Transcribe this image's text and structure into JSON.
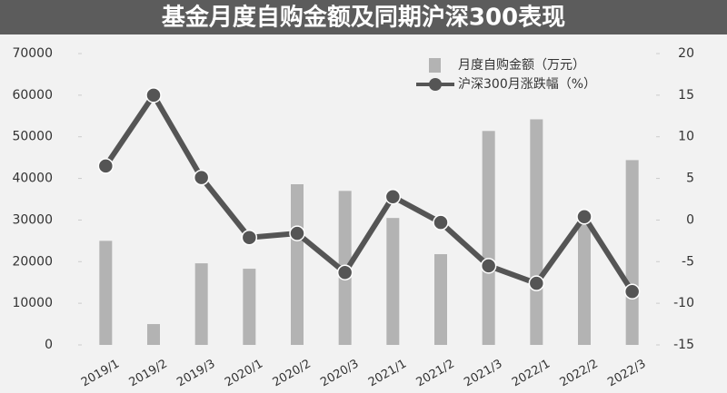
{
  "chart_data": {
    "type": "combo",
    "title": "基金月度自购金额及同期沪深300表现",
    "categories": [
      "2019/1",
      "2019/2",
      "2019/3",
      "2020/1",
      "2020/2",
      "2020/3",
      "2021/1",
      "2021/2",
      "2021/3",
      "2022/1",
      "2022/2",
      "2022/3"
    ],
    "series": [
      {
        "name": "月度自购金额（万元）",
        "type": "bar",
        "color": "#b3b3b3",
        "axis": "y",
        "values": [
          25000,
          5000,
          19600,
          18300,
          38600,
          37000,
          30500,
          21800,
          51400,
          54200,
          29000,
          44400
        ]
      },
      {
        "name": "沪深300月涨跌幅（%）",
        "type": "line",
        "color": "#555555",
        "axis": "y2",
        "values": [
          6.5,
          15,
          5.1,
          -2.1,
          -1.6,
          -6.3,
          2.8,
          -0.3,
          -5.5,
          -7.6,
          0.4,
          -8.6
        ]
      }
    ],
    "ylim": [
      0,
      70000
    ],
    "yticks": [
      0,
      10000,
      20000,
      30000,
      40000,
      50000,
      60000,
      70000
    ],
    "y2lim": [
      -15,
      20
    ],
    "y2ticks": [
      -15,
      -10,
      -5,
      0,
      5,
      10,
      15,
      20
    ],
    "legend": "top-right"
  }
}
